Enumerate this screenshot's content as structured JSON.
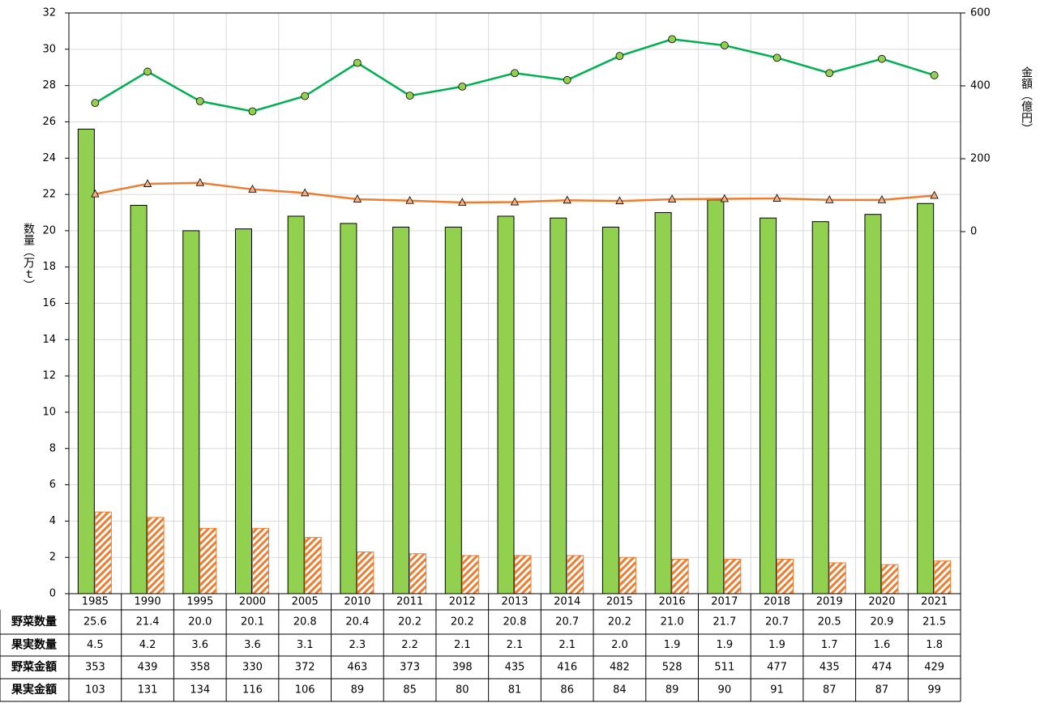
{
  "chart_data": {
    "type": "bar_line_table",
    "y_label": "数量（万ｔ）",
    "y2_label": "金額（億円）",
    "categories": [
      "1985",
      "1990",
      "1995",
      "2000",
      "2005",
      "2010",
      "2011",
      "2012",
      "2013",
      "2014",
      "2015",
      "2016",
      "2017",
      "2018",
      "2019",
      "2020",
      "2021"
    ],
    "ylim": [
      0,
      32
    ],
    "yticks": [
      0,
      2,
      4,
      6,
      8,
      10,
      12,
      14,
      16,
      18,
      20,
      22,
      24,
      26,
      28,
      30,
      32
    ],
    "y2lim": [
      -993.3,
      600
    ],
    "y2ticks": [
      0,
      200,
      400,
      600
    ],
    "grid": true,
    "series": [
      {
        "name": "野菜数量",
        "kind": "bar",
        "color": "#92d050",
        "values": [
          25.6,
          21.4,
          20.0,
          20.1,
          20.8,
          20.4,
          20.2,
          20.2,
          20.8,
          20.7,
          20.2,
          21.0,
          21.7,
          20.7,
          20.5,
          20.9,
          21.5
        ],
        "value_labels": [
          "25.6",
          "21.4",
          "20.0",
          "20.1",
          "20.8",
          "20.4",
          "20.2",
          "20.2",
          "20.8",
          "20.7",
          "20.2",
          "21.0",
          "21.7",
          "20.7",
          "20.5",
          "20.9",
          "21.5"
        ]
      },
      {
        "name": "果実数量",
        "kind": "hatched-bar",
        "color": "#ed7d31",
        "values": [
          4.5,
          4.2,
          3.6,
          3.6,
          3.1,
          2.3,
          2.2,
          2.1,
          2.1,
          2.1,
          2.0,
          1.9,
          1.9,
          1.9,
          1.7,
          1.6,
          1.8
        ],
        "value_labels": [
          "4.5",
          "4.2",
          "3.6",
          "3.6",
          "3.1",
          "2.3",
          "2.2",
          "2.1",
          "2.1",
          "2.1",
          "2.0",
          "1.9",
          "1.9",
          "1.9",
          "1.7",
          "1.6",
          "1.8"
        ]
      },
      {
        "name": "野菜金額",
        "kind": "line",
        "axis": "y2",
        "color": "#00b050",
        "marker": "circle",
        "marker_color": "#92d050",
        "values": [
          353,
          439,
          358,
          330,
          372,
          463,
          373,
          398,
          435,
          416,
          482,
          528,
          511,
          477,
          435,
          474,
          429
        ]
      },
      {
        "name": "果実金額",
        "kind": "line",
        "axis": "y2",
        "color": "#ed7d31",
        "marker": "triangle",
        "marker_color": "#f4b183",
        "values": [
          103,
          131,
          134,
          116,
          106,
          89,
          85,
          80,
          81,
          86,
          84,
          89,
          90,
          91,
          87,
          87,
          99
        ]
      }
    ]
  }
}
